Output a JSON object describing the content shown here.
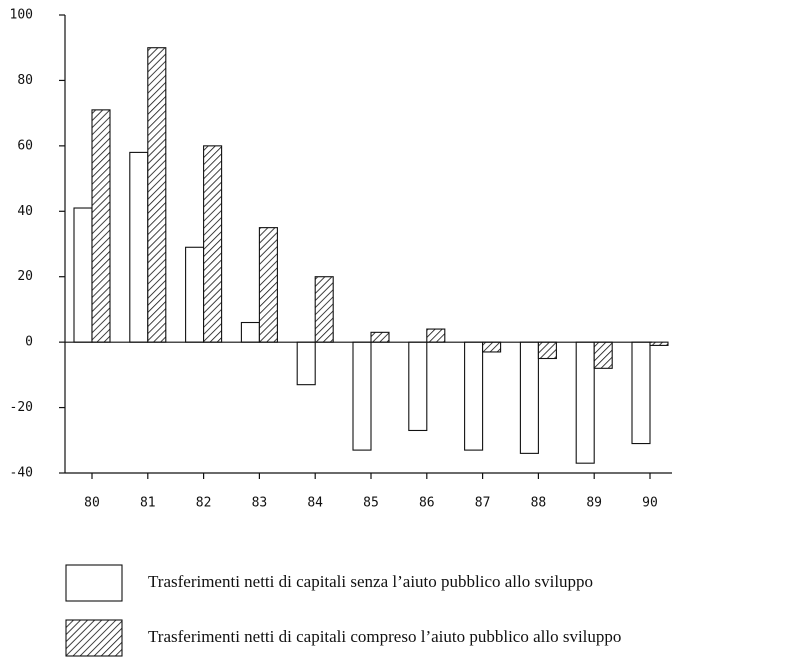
{
  "chart_data": {
    "type": "bar",
    "categories": [
      "80",
      "81",
      "82",
      "83",
      "84",
      "85",
      "86",
      "87",
      "88",
      "89",
      "90"
    ],
    "series": [
      {
        "name": "Trasferimenti netti di capitali senza l’aiuto pubblico allo sviluppo",
        "color": "#ffffff",
        "hatch": false,
        "values": [
          41,
          58,
          29,
          6,
          -13,
          -33,
          -27,
          -33,
          -34,
          -37,
          -31
        ]
      },
      {
        "name": "Trasferimenti netti di capitali compreso l’aiuto pubblico allo sviluppo",
        "color": "#111111",
        "hatch": true,
        "values": [
          71,
          90,
          60,
          35,
          20,
          3,
          4,
          -3,
          -5,
          -8,
          -1
        ]
      }
    ],
    "ylim": [
      -40,
      100
    ],
    "yticks": [
      -40,
      -20,
      0,
      20,
      40,
      60,
      80,
      100
    ]
  }
}
